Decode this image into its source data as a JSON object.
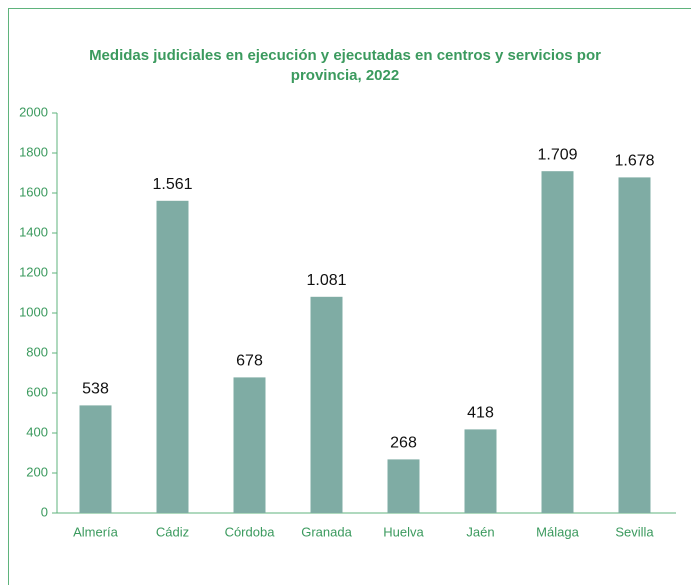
{
  "chart_data": {
    "type": "bar",
    "title": "Medidas judiciales en ejecución y ejecutadas en centros y servicios por provincia, 2022",
    "categories": [
      "Almería",
      "Cádiz",
      "Córdoba",
      "Granada",
      "Huelva",
      "Jaén",
      "Málaga",
      "Sevilla"
    ],
    "values": [
      538,
      1561,
      678,
      1081,
      268,
      418,
      1709,
      1678
    ],
    "value_labels": [
      "538",
      "1.561",
      "678",
      "1.081",
      "268",
      "418",
      "1.709",
      "1.678"
    ],
    "color": "#7faca4",
    "ylim": [
      0,
      2000
    ],
    "yticks": [
      0,
      200,
      400,
      600,
      800,
      1000,
      1200,
      1400,
      1600,
      1800,
      2000
    ],
    "grid": false
  }
}
